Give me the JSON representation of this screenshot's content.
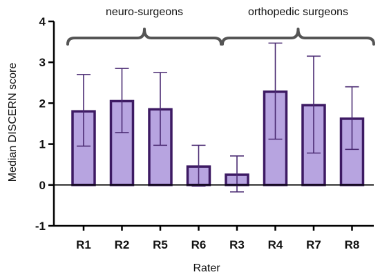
{
  "chart_data": {
    "type": "bar",
    "title": "",
    "xlabel": "Rater",
    "ylabel": "Median DISCERN score",
    "ylim": [
      -1,
      4
    ],
    "yticks": [
      "-1",
      "0",
      "1",
      "2",
      "3",
      "4"
    ],
    "categories": [
      "R1",
      "R2",
      "R5",
      "R6",
      "R3",
      "R4",
      "R7",
      "R8"
    ],
    "values": [
      1.8,
      2.05,
      1.85,
      0.45,
      0.25,
      2.28,
      1.95,
      1.62
    ],
    "error_lower": [
      0.95,
      1.28,
      0.97,
      -0.03,
      -0.17,
      1.12,
      0.78,
      0.87
    ],
    "error_upper": [
      2.7,
      2.85,
      2.75,
      0.97,
      0.71,
      3.47,
      3.15,
      2.4
    ],
    "groups": [
      {
        "label": "neuro-surgeons",
        "categories": [
          "R1",
          "R2",
          "R5",
          "R6"
        ]
      },
      {
        "label": "orthopedic surgeons",
        "categories": [
          "R3",
          "R4",
          "R7",
          "R8"
        ]
      }
    ],
    "grid": false,
    "colors": {
      "bar_fill": "#b7a4e0",
      "bar_stroke": "#3d1a63",
      "error_bar": "#4a2a72",
      "brace": "#555555",
      "axis": "#000000"
    }
  }
}
